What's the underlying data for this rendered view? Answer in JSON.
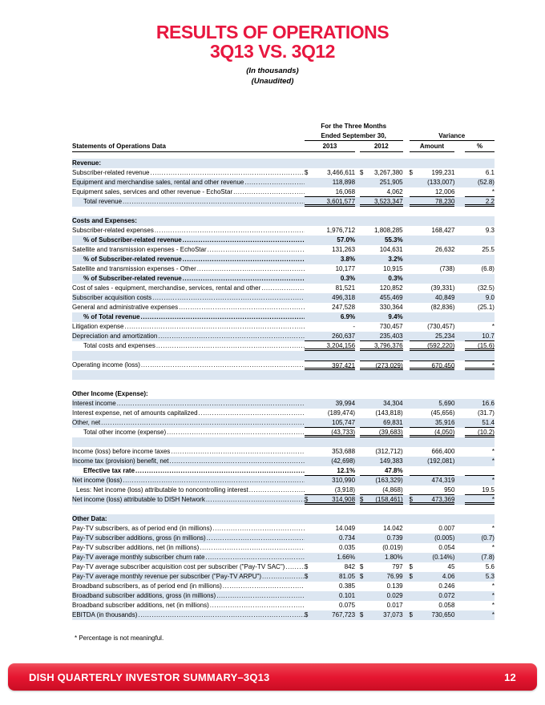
{
  "title": {
    "line1": "RESULTS OF OPERATIONS",
    "line2": "3Q13 VS. 3Q12",
    "note1": "(In thousands)",
    "note2": "(Unaudited)"
  },
  "colors": {
    "accent_red": "#e8173f",
    "row_blue": "#dce6f1",
    "footer_red": "#e51530"
  },
  "table": {
    "header": {
      "left": "Statements of Operations Data",
      "period_line1": "For the Three Months",
      "period_line2": "Ended September 30,",
      "variance": "Variance",
      "cols": [
        "2013",
        "2012",
        "Amount",
        "%"
      ]
    },
    "rows": [
      {
        "label": "Revenue:",
        "bg": "b",
        "header": true
      },
      {
        "label": "Subscriber-related revenue",
        "bg": "w",
        "dollar": true,
        "dots": true,
        "v": [
          "3,466,611",
          "3,267,380",
          "199,231",
          "6.1"
        ]
      },
      {
        "label": "Equipment and merchandise sales, rental and other revenue",
        "bg": "b",
        "dots": true,
        "v": [
          "118,898",
          "251,905",
          "(133,007)",
          "(52.8)"
        ]
      },
      {
        "label": "Equipment sales, services and other revenue - EchoStar",
        "bg": "w",
        "dots": true,
        "ul": "s",
        "v": [
          "16,068",
          "4,062",
          "12,006",
          "*"
        ]
      },
      {
        "label": "Total revenue",
        "bg": "b",
        "indent": 1,
        "dots": true,
        "ul": "d",
        "v": [
          "3,601,577",
          "3,523,347",
          "78,230",
          "2.2"
        ]
      },
      {
        "blank": true,
        "bg": "w"
      },
      {
        "label": "Costs and Expenses:",
        "bg": "b",
        "header": true
      },
      {
        "label": "Subscriber-related expenses",
        "bg": "w",
        "dots": true,
        "v": [
          "1,976,712",
          "1,808,285",
          "168,427",
          "9.3"
        ]
      },
      {
        "label": "% of Subscriber-related revenue",
        "bg": "b",
        "bold": true,
        "indent": 1,
        "dots": true,
        "v": [
          "57.0%",
          "55.3%",
          "",
          ""
        ]
      },
      {
        "label": "Satellite and transmission expenses - EchoStar",
        "bg": "w",
        "dots": true,
        "v": [
          "131,263",
          "104,631",
          "26,632",
          "25.5"
        ]
      },
      {
        "label": "% of Subscriber-related revenue",
        "bg": "b",
        "bold": true,
        "indent": 1,
        "dots": true,
        "v": [
          "3.8%",
          "3.2%",
          "",
          ""
        ]
      },
      {
        "label": "Satellite and transmission expenses - Other",
        "bg": "w",
        "dots": true,
        "v": [
          "10,177",
          "10,915",
          "(738)",
          "(6.8)"
        ]
      },
      {
        "label": "% of Subscriber-related revenue",
        "bg": "b",
        "bold": true,
        "indent": 1,
        "dots": true,
        "v": [
          "0.3%",
          "0.3%",
          "",
          ""
        ]
      },
      {
        "label": "Cost of sales - equipment, merchandise, services, rental and other",
        "bg": "w",
        "dots": true,
        "v": [
          "81,521",
          "120,852",
          "(39,331)",
          "(32.5)"
        ]
      },
      {
        "label": "Subscriber acquisition costs",
        "bg": "b",
        "dots": true,
        "v": [
          "496,318",
          "455,469",
          "40,849",
          "9.0"
        ]
      },
      {
        "label": "General and administrative expenses",
        "bg": "w",
        "dots": true,
        "v": [
          "247,528",
          "330,364",
          "(82,836)",
          "(25.1)"
        ]
      },
      {
        "label": "% of Total revenue",
        "bg": "b",
        "bold": true,
        "indent": 1,
        "dots": true,
        "v": [
          "6.9%",
          "9.4%",
          "",
          ""
        ]
      },
      {
        "label": "Litigation expense",
        "bg": "w",
        "dots": true,
        "v": [
          "-",
          "730,457",
          "(730,457)",
          "*"
        ]
      },
      {
        "label": "Depreciation and amortization",
        "bg": "b",
        "dots": true,
        "ul": "s",
        "v": [
          "260,637",
          "235,403",
          "25,234",
          "10.7"
        ]
      },
      {
        "label": "Total costs and expenses",
        "bg": "w",
        "indent": 1,
        "dots": true,
        "ul": "d",
        "v": [
          "3,204,156",
          "3,796,376",
          "(592,220)",
          "(15.6)"
        ]
      },
      {
        "blank": true,
        "bg": "b"
      },
      {
        "label": "Operating income (loss)",
        "bg": "w",
        "dots": true,
        "ul": "d",
        "ut": true,
        "v": [
          "397,421",
          "(273,029)",
          "670,450",
          "*"
        ]
      },
      {
        "blank": true,
        "bg": "b"
      },
      {
        "blank": true,
        "bg": "w"
      },
      {
        "label": "Other Income (Expense):",
        "bg": "w",
        "header": true
      },
      {
        "label": "Interest income",
        "bg": "b",
        "dots": true,
        "v": [
          "39,994",
          "34,304",
          "5,690",
          "16.6"
        ]
      },
      {
        "label": "Interest expense, net of amounts capitalized",
        "bg": "w",
        "dots": true,
        "v": [
          "(189,474)",
          "(143,818)",
          "(45,656)",
          "(31.7)"
        ]
      },
      {
        "label": "Other, net",
        "bg": "b",
        "dots": true,
        "ul": "s",
        "v": [
          "105,747",
          "69,831",
          "35,916",
          "51.4"
        ]
      },
      {
        "label": "Total other income (expense)",
        "bg": "w",
        "indent": 1,
        "dots": true,
        "ul": "d",
        "v": [
          "(43,733)",
          "(39,683)",
          "(4,050)",
          "(10.2)"
        ]
      },
      {
        "blank": true,
        "bg": "b"
      },
      {
        "label": "Income (loss) before income taxes",
        "bg": "w",
        "dots": true,
        "v": [
          "353,688",
          "(312,712)",
          "666,400",
          "*"
        ]
      },
      {
        "label": "Income tax (provision) benefit, net",
        "bg": "b",
        "dots": true,
        "v": [
          "(42,698)",
          "149,383",
          "(192,081)",
          "*"
        ]
      },
      {
        "label": "Effective tax rate",
        "bg": "w",
        "bold": true,
        "indent": 1,
        "dots": true,
        "ul": "s",
        "v": [
          "12.1%",
          "47.8%",
          "",
          ""
        ]
      },
      {
        "label": "Net income (loss)",
        "bg": "b",
        "dots": true,
        "v": [
          "310,990",
          "(163,329)",
          "474,319",
          "*"
        ]
      },
      {
        "label": "Less:  Net income (loss) attributable to noncontrolling interest",
        "bg": "w",
        "indent": 2,
        "dots": true,
        "ul": "s",
        "v": [
          "(3,918)",
          "(4,868)",
          "950",
          "19.5"
        ]
      },
      {
        "label": "Net income (loss) attributable to DISH Network",
        "bg": "b",
        "dollar": true,
        "dots": true,
        "ul": "d",
        "v": [
          "314,908",
          "(158,461)",
          "473,369",
          "*"
        ]
      },
      {
        "blank": true,
        "bg": "w"
      },
      {
        "label": "Other Data:",
        "bg": "b",
        "header": true
      },
      {
        "label": "Pay-TV subscribers, as of period end (in millions)",
        "bg": "w",
        "dots": true,
        "v": [
          "14.049",
          "14.042",
          "0.007",
          "*"
        ]
      },
      {
        "label": "Pay-TV subscriber additions, gross (in millions)",
        "bg": "b",
        "dots": true,
        "v": [
          "0.734",
          "0.739",
          "(0.005)",
          "(0.7)"
        ]
      },
      {
        "label": "Pay-TV subscriber additions, net (in millions)",
        "bg": "w",
        "dots": true,
        "v": [
          "0.035",
          "(0.019)",
          "0.054",
          "*"
        ]
      },
      {
        "label": "Pay-TV average monthly subscriber churn rate",
        "bg": "b",
        "dots": true,
        "v": [
          "1.66%",
          "1.80%",
          "(0.14%)",
          "(7.8)"
        ]
      },
      {
        "label": "Pay-TV average subscriber acquisition cost per subscriber (\"Pay-TV SAC\")",
        "bg": "w",
        "dollar": true,
        "dots": true,
        "v": [
          "842",
          "797",
          "45",
          "5.6"
        ]
      },
      {
        "label": "Pay-TV average monthly revenue per subscriber (\"Pay-TV ARPU\")",
        "bg": "b",
        "dollar": true,
        "dots": true,
        "v": [
          "81.05",
          "76.99",
          "4.06",
          "5.3"
        ]
      },
      {
        "label": "Broadband subscribers, as of period end (in millions)",
        "bg": "w",
        "dots": true,
        "v": [
          "0.385",
          "0.139",
          "0.246",
          "*"
        ]
      },
      {
        "label": "Broadband subscriber additions, gross (in millions)",
        "bg": "b",
        "dots": true,
        "v": [
          "0.101",
          "0.029",
          "0.072",
          "*"
        ]
      },
      {
        "label": "Broadband subscriber additions, net (in millions)",
        "bg": "w",
        "dots": true,
        "v": [
          "0.075",
          "0.017",
          "0.058",
          "*"
        ]
      },
      {
        "label": "EBITDA (in thousands)",
        "bg": "b",
        "dollar": true,
        "dots": true,
        "v": [
          "767,723",
          "37,073",
          "730,650",
          "*"
        ]
      }
    ]
  },
  "footnote": "*  Percentage is not meaningful.",
  "footer": {
    "text": "DISH QUARTERLY INVESTOR SUMMARY–3Q13",
    "page": "12"
  }
}
